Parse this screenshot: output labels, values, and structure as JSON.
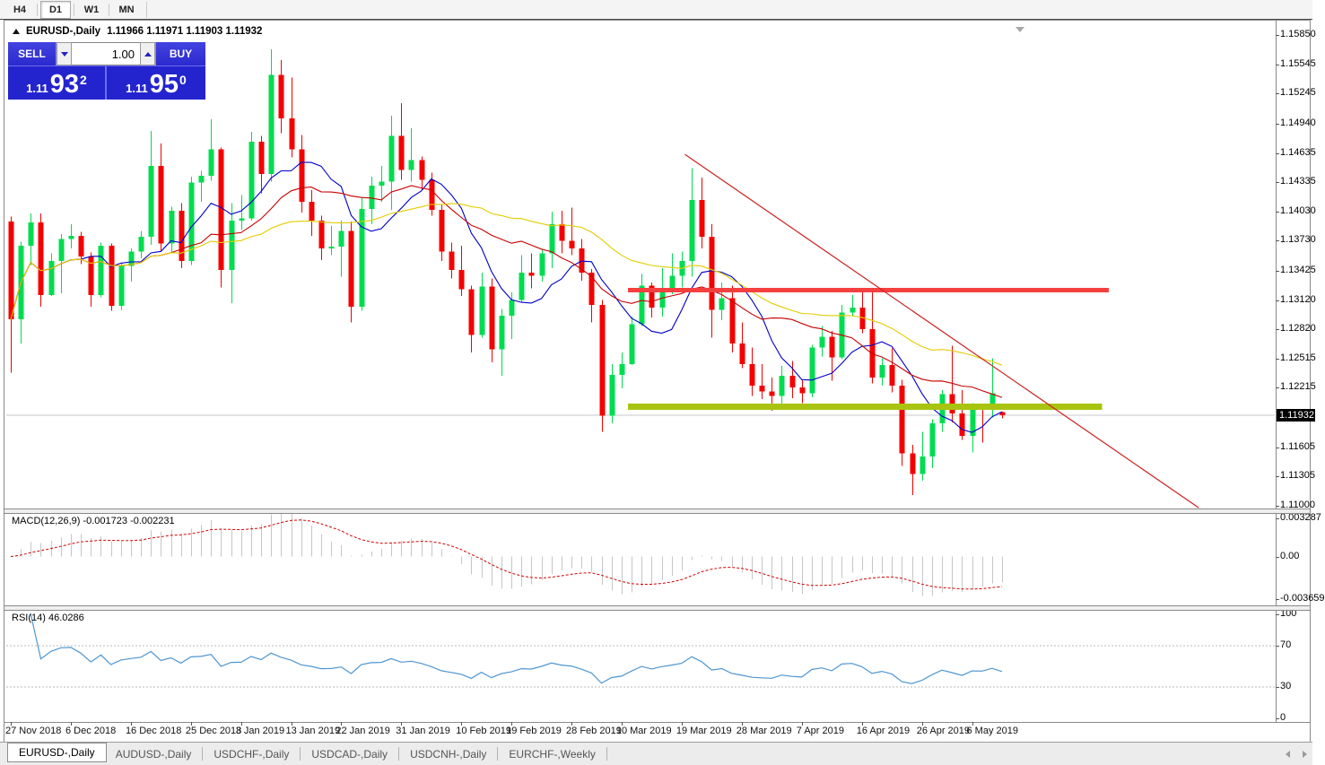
{
  "toolbar": {
    "timeframes": [
      {
        "label": "H4",
        "active": false
      },
      {
        "label": "D1",
        "active": true
      },
      {
        "label": "W1",
        "active": false
      },
      {
        "label": "MN",
        "active": false
      }
    ]
  },
  "chart": {
    "title_symbol": "EURUSD-,Daily",
    "title_ohlc": "1.11966 1.11971 1.11903 1.11932"
  },
  "trade": {
    "sell_label": "SELL",
    "buy_label": "BUY",
    "volume": "1.00",
    "sell_price": {
      "prefix": "1.11",
      "big": "93",
      "sup": "2"
    },
    "buy_price": {
      "prefix": "1.11",
      "big": "95",
      "sup": "0"
    }
  },
  "macd_panel": {
    "label": "MACD(12,26,9) -0.001723 -0.002231",
    "ticks": [
      {
        "v": 0.003287,
        "t": "0.003287"
      },
      {
        "v": 0,
        "t": "0.00"
      },
      {
        "v": -0.003659,
        "t": "-0.003659"
      }
    ]
  },
  "rsi_panel": {
    "label": "RSI(14) 46.0286",
    "ticks": [
      {
        "v": 100,
        "t": "100"
      },
      {
        "v": 70,
        "t": "70"
      },
      {
        "v": 30,
        "t": "30"
      },
      {
        "v": 0,
        "t": "0"
      }
    ]
  },
  "tabs": {
    "items": [
      "EURUSD-,Daily",
      "AUDUSD-,Daily",
      "USDCHF-,Daily",
      "USDCAD-,Daily",
      "USDCNH-,Daily",
      "EURCHF-,Weekly"
    ],
    "active_index": 0
  },
  "chart_data": [
    {
      "type": "candlestick",
      "title": "EURUSD-,Daily",
      "colors": {
        "bull": "#00DC50",
        "bear": "#F40000"
      },
      "y_axis": {
        "max": 1.1585,
        "min": 1.11,
        "ticks": [
          "1.15850",
          "1.15545",
          "1.15245",
          "1.14940",
          "1.14635",
          "1.14335",
          "1.14030",
          "1.13730",
          "1.13425",
          "1.13120",
          "1.12820",
          "1.12515",
          "1.12215",
          "1.11605",
          "1.11305",
          "1.11000"
        ],
        "current_price": 1.11932,
        "current_label": "1.11932"
      },
      "x_labels": [
        {
          "i": 0,
          "t": "27 Nov 2018"
        },
        {
          "i": 6,
          "t": "6 Dec 2018"
        },
        {
          "i": 12,
          "t": "16 Dec 2018"
        },
        {
          "i": 18,
          "t": "25 Dec 2018"
        },
        {
          "i": 23,
          "t": "3 Jan 2019"
        },
        {
          "i": 28,
          "t": "13 Jan 2019"
        },
        {
          "i": 33,
          "t": "22 Jan 2019"
        },
        {
          "i": 39,
          "t": "31 Jan 2019"
        },
        {
          "i": 45,
          "t": "10 Feb 2019"
        },
        {
          "i": 50,
          "t": "19 Feb 2019"
        },
        {
          "i": 56,
          "t": "28 Feb 2019"
        },
        {
          "i": 61,
          "t": "10 Mar 2019"
        },
        {
          "i": 67,
          "t": "19 Mar 2019"
        },
        {
          "i": 73,
          "t": "28 Mar 2019"
        },
        {
          "i": 79,
          "t": "7 Apr 2019"
        },
        {
          "i": 85,
          "t": "16 Apr 2019"
        },
        {
          "i": 91,
          "t": "26 Apr 2019"
        },
        {
          "i": 96,
          "t": "6 May 2019"
        }
      ],
      "overlays": {
        "moving_averages": [
          {
            "period": 8,
            "color": "#0000C8"
          },
          {
            "period": 17,
            "color": "#C80000"
          },
          {
            "period": 34,
            "color": "#E3CC00"
          }
        ],
        "horizontal_lines": [
          {
            "price": 1.1322,
            "color": "#F54040",
            "width": 5,
            "x1f": 0.49,
            "x2f": 0.869
          },
          {
            "price": 1.1202,
            "color": "#A8C411",
            "width": 7,
            "x1f": 0.49,
            "x2f": 0.864
          }
        ],
        "trendline": {
          "x1f": 0.535,
          "p1": 1.1462,
          "x2f": 0.94,
          "p2": 1.1098,
          "color": "#CC2222"
        }
      },
      "ohlc": [
        [
          1.1393,
          1.1398,
          1.1237,
          1.1292
        ],
        [
          1.1292,
          1.1372,
          1.1267,
          1.1368
        ],
        [
          1.1368,
          1.1401,
          1.1348,
          1.1392
        ],
        [
          1.1392,
          1.1401,
          1.1305,
          1.1317
        ],
        [
          1.1317,
          1.136,
          1.1316,
          1.1352
        ],
        [
          1.1352,
          1.138,
          1.1319,
          1.1375
        ],
        [
          1.1375,
          1.139,
          1.1365,
          1.1378
        ],
        [
          1.1378,
          1.1382,
          1.1349,
          1.1357
        ],
        [
          1.1357,
          1.1361,
          1.1305,
          1.1317
        ],
        [
          1.1317,
          1.1371,
          1.1315,
          1.1368
        ],
        [
          1.1368,
          1.137,
          1.1301,
          1.1306
        ],
        [
          1.1306,
          1.135,
          1.1302,
          1.1347
        ],
        [
          1.1347,
          1.1365,
          1.1331,
          1.1362
        ],
        [
          1.1362,
          1.1383,
          1.1355,
          1.1377
        ],
        [
          1.1377,
          1.1486,
          1.1369,
          1.145
        ],
        [
          1.145,
          1.1473,
          1.1362,
          1.137
        ],
        [
          1.137,
          1.1408,
          1.136,
          1.1404
        ],
        [
          1.1404,
          1.1412,
          1.1345,
          1.1352
        ],
        [
          1.1352,
          1.1439,
          1.1348,
          1.1433
        ],
        [
          1.1433,
          1.1445,
          1.1413,
          1.144
        ],
        [
          1.144,
          1.1498,
          1.1435,
          1.1467
        ],
        [
          1.1467,
          1.1469,
          1.1325,
          1.1343
        ],
        [
          1.1343,
          1.1412,
          1.1309,
          1.1394
        ],
        [
          1.1394,
          1.142,
          1.1384,
          1.1396
        ],
        [
          1.1396,
          1.1485,
          1.1394,
          1.1475
        ],
        [
          1.1475,
          1.1481,
          1.1422,
          1.1442
        ],
        [
          1.1442,
          1.157,
          1.1434,
          1.1544
        ],
        [
          1.1544,
          1.1559,
          1.1484,
          1.1499
        ],
        [
          1.1499,
          1.1541,
          1.1459,
          1.1467
        ],
        [
          1.1467,
          1.1482,
          1.1402,
          1.1413
        ],
        [
          1.1413,
          1.1425,
          1.1378,
          1.1394
        ],
        [
          1.1394,
          1.1399,
          1.1353,
          1.1365
        ],
        [
          1.1365,
          1.1388,
          1.1358,
          1.1367
        ],
        [
          1.1367,
          1.1394,
          1.1336,
          1.1383
        ],
        [
          1.1383,
          1.1393,
          1.1289,
          1.1305
        ],
        [
          1.1305,
          1.1418,
          1.1301,
          1.1406
        ],
        [
          1.1406,
          1.1439,
          1.139,
          1.143
        ],
        [
          1.143,
          1.145,
          1.1413,
          1.1434
        ],
        [
          1.1434,
          1.1502,
          1.1405,
          1.1481
        ],
        [
          1.1481,
          1.1515,
          1.1436,
          1.1446
        ],
        [
          1.1446,
          1.1489,
          1.1434,
          1.1456
        ],
        [
          1.1456,
          1.146,
          1.1425,
          1.1436
        ],
        [
          1.1436,
          1.1443,
          1.1399,
          1.1405
        ],
        [
          1.1405,
          1.141,
          1.1352,
          1.1362
        ],
        [
          1.1362,
          1.1371,
          1.1334,
          1.1343
        ],
        [
          1.1343,
          1.1368,
          1.1316,
          1.1323
        ],
        [
          1.1323,
          1.1327,
          1.1258,
          1.1276
        ],
        [
          1.1276,
          1.134,
          1.1273,
          1.1326
        ],
        [
          1.1326,
          1.1334,
          1.1248,
          1.1261
        ],
        [
          1.1261,
          1.1303,
          1.1234,
          1.1296
        ],
        [
          1.1296,
          1.132,
          1.1272,
          1.1312
        ],
        [
          1.1312,
          1.1358,
          1.131,
          1.134
        ],
        [
          1.134,
          1.136,
          1.1324,
          1.1337
        ],
        [
          1.1337,
          1.1364,
          1.1331,
          1.136
        ],
        [
          1.136,
          1.1403,
          1.1345,
          1.139
        ],
        [
          1.139,
          1.1404,
          1.136,
          1.1373
        ],
        [
          1.1373,
          1.1407,
          1.1358,
          1.1365
        ],
        [
          1.1365,
          1.1375,
          1.1332,
          1.134
        ],
        [
          1.134,
          1.1344,
          1.1289,
          1.1307
        ],
        [
          1.1307,
          1.1312,
          1.1176,
          1.1193
        ],
        [
          1.1193,
          1.1246,
          1.1185,
          1.1235
        ],
        [
          1.1235,
          1.1258,
          1.1221,
          1.1246
        ],
        [
          1.1246,
          1.1295,
          1.1245,
          1.1287
        ],
        [
          1.1287,
          1.1339,
          1.1285,
          1.1327
        ],
        [
          1.1327,
          1.133,
          1.1294,
          1.1304
        ],
        [
          1.1304,
          1.1345,
          1.1295,
          1.1324
        ],
        [
          1.1324,
          1.136,
          1.1318,
          1.1337
        ],
        [
          1.1337,
          1.1362,
          1.1325,
          1.1352
        ],
        [
          1.1352,
          1.1448,
          1.1336,
          1.1415
        ],
        [
          1.1415,
          1.1438,
          1.1365,
          1.1377
        ],
        [
          1.1377,
          1.139,
          1.1273,
          1.1302
        ],
        [
          1.1302,
          1.133,
          1.1291,
          1.1314
        ],
        [
          1.1314,
          1.1327,
          1.1258,
          1.1267
        ],
        [
          1.1267,
          1.1289,
          1.1242,
          1.1246
        ],
        [
          1.1246,
          1.1263,
          1.1213,
          1.1224
        ],
        [
          1.1224,
          1.1246,
          1.121,
          1.1218
        ],
        [
          1.1218,
          1.1232,
          1.1198,
          1.1213
        ],
        [
          1.1213,
          1.1244,
          1.1201,
          1.1234
        ],
        [
          1.1234,
          1.1249,
          1.1211,
          1.1222
        ],
        [
          1.1222,
          1.123,
          1.1206,
          1.1216
        ],
        [
          1.1216,
          1.1266,
          1.1212,
          1.1263
        ],
        [
          1.1263,
          1.1285,
          1.1254,
          1.1274
        ],
        [
          1.1274,
          1.128,
          1.1229,
          1.1253
        ],
        [
          1.1253,
          1.1307,
          1.1251,
          1.1299
        ],
        [
          1.1299,
          1.1317,
          1.1295,
          1.1304
        ],
        [
          1.1304,
          1.1322,
          1.1278,
          1.1282
        ],
        [
          1.1282,
          1.1324,
          1.1226,
          1.1232
        ],
        [
          1.1232,
          1.1252,
          1.1224,
          1.1245
        ],
        [
          1.1245,
          1.1262,
          1.1217,
          1.1224
        ],
        [
          1.1224,
          1.123,
          1.1141,
          1.1154
        ],
        [
          1.1154,
          1.1163,
          1.1111,
          1.1133
        ],
        [
          1.1133,
          1.1176,
          1.1126,
          1.1151
        ],
        [
          1.1151,
          1.1189,
          1.1139,
          1.1185
        ],
        [
          1.1185,
          1.1219,
          1.1176,
          1.1215
        ],
        [
          1.1215,
          1.1265,
          1.1186,
          1.1195
        ],
        [
          1.1195,
          1.1219,
          1.1168,
          1.1172
        ],
        [
          1.1172,
          1.1206,
          1.1155,
          1.12
        ],
        [
          1.12,
          1.1204,
          1.1165,
          1.1199
        ],
        [
          1.1199,
          1.1252,
          1.1191,
          1.1216
        ],
        [
          1.11966,
          1.11971,
          1.11903,
          1.11932
        ]
      ]
    },
    {
      "type": "macd",
      "params": [
        12,
        26,
        9
      ],
      "label_values": [
        -0.001723,
        -0.002231
      ],
      "y_max": 0.003287,
      "y_min": -0.003659,
      "histogram_color": "#C6C6C6",
      "signal_color": "#D00000"
    },
    {
      "type": "rsi",
      "period": 14,
      "last_value": 46.0286,
      "levels": [
        70,
        30
      ],
      "color": "#4E96D2",
      "level_color": "#B8B8B8"
    }
  ]
}
